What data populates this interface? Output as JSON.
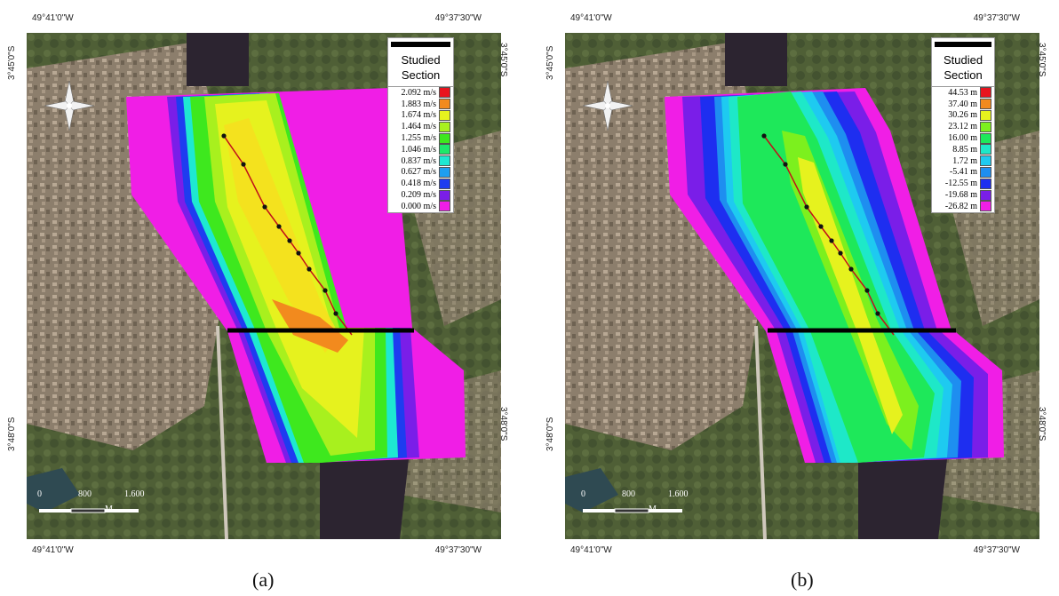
{
  "panels": [
    {
      "caption": "(a)",
      "coords": {
        "top_left": "49°41'0\"W",
        "top_right": "49°37'30\"W",
        "bottom_left": "49°41'0\"W",
        "bottom_right": "49°37'30\"W",
        "left_top": "3°45'0\"S",
        "left_bottom": "3°48'0\"S",
        "right_top": "3°45'0\"S",
        "right_bottom": "3°48'0\"S"
      },
      "legend": {
        "title_line1": "Studied",
        "title_line2": "Section",
        "entries": [
          {
            "label": "2.092 m/s",
            "color": "#e8141e"
          },
          {
            "label": "1.883 m/s",
            "color": "#f28a1e"
          },
          {
            "label": "1.674 m/s",
            "color": "#e6f21e"
          },
          {
            "label": "1.464 m/s",
            "color": "#a8f01e"
          },
          {
            "label": "1.255 m/s",
            "color": "#3ee81e"
          },
          {
            "label": "1.046 m/s",
            "color": "#1ee86a"
          },
          {
            "label": "0.837 m/s",
            "color": "#1ee8d2"
          },
          {
            "label": "0.627 m/s",
            "color": "#1e9ef0"
          },
          {
            "label": "0.418 m/s",
            "color": "#1e3cf0"
          },
          {
            "label": "0.209 m/s",
            "color": "#7a1ee8"
          },
          {
            "label": "0.000 m/s",
            "color": "#f01ee6"
          }
        ]
      },
      "scale": {
        "ticks": [
          "0",
          "800",
          "1.600"
        ],
        "unit": "M"
      }
    },
    {
      "caption": "(b)",
      "coords": {
        "top_left": "49°41'0\"W",
        "top_right": "49°37'30\"W",
        "bottom_left": "49°41'0\"W",
        "bottom_right": "49°37'30\"W",
        "left_top": "3°45'0\"S",
        "left_bottom": "3°48'0\"S",
        "right_top": "3°45'0\"S",
        "right_bottom": "3°48'0\"S"
      },
      "legend": {
        "title_line1": "Studied",
        "title_line2": "Section",
        "entries": [
          {
            "label": "44.53 m",
            "color": "#e8141e"
          },
          {
            "label": "37.40 m",
            "color": "#f28a1e"
          },
          {
            "label": "30.26 m",
            "color": "#e6f21e"
          },
          {
            "label": "23.12 m",
            "color": "#7cf01e"
          },
          {
            "label": "16.00 m",
            "color": "#1ee85a"
          },
          {
            "label": "8.85 m",
            "color": "#1ee8c8"
          },
          {
            "label": "1.72 m",
            "color": "#1ecaf0"
          },
          {
            "label": "-5.41 m",
            "color": "#1e8ef0"
          },
          {
            "label": "-12.55 m",
            "color": "#1e2ef0"
          },
          {
            "label": "-19.68 m",
            "color": "#7a1ee8"
          },
          {
            "label": "-26.82 m",
            "color": "#f01ee6"
          }
        ]
      },
      "scale": {
        "ticks": [
          "0",
          "800",
          "1.600"
        ],
        "unit": "M"
      }
    }
  ]
}
